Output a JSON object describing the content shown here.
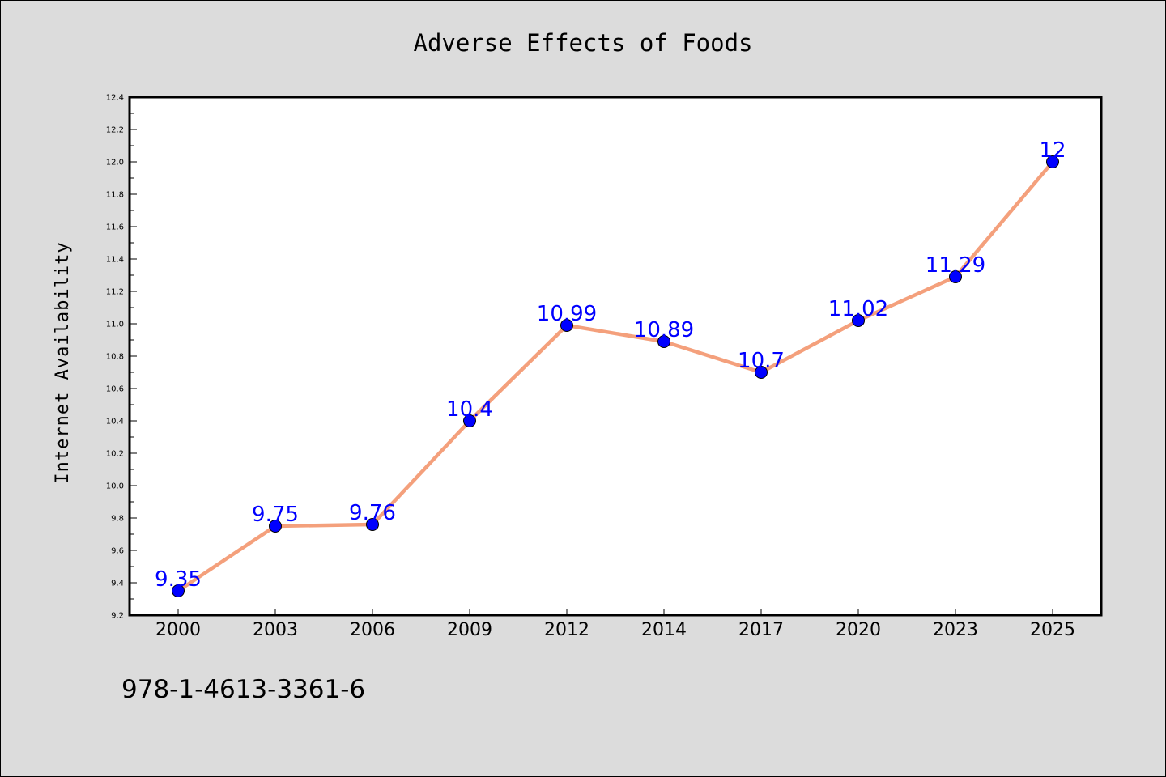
{
  "chart_data": {
    "type": "line",
    "title": "Adverse Effects of Foods",
    "xlabel": "",
    "ylabel": "Internet Availability",
    "categories": [
      "2000",
      "2003",
      "2006",
      "2009",
      "2012",
      "2014",
      "2017",
      "2020",
      "2023",
      "2025"
    ],
    "series": [
      {
        "values": [
          9.35,
          9.75,
          9.76,
          10.4,
          10.99,
          10.89,
          10.7,
          11.02,
          11.29,
          12
        ],
        "data_labels": [
          "9.35",
          "9.75",
          "9.76",
          "10.4",
          "10.99",
          "10.89",
          "10.7",
          "11.02",
          "11.29",
          "12"
        ],
        "line_color": "#f4a07c",
        "marker_color": "#0000ff"
      }
    ],
    "ylim": [
      9.2,
      12.4
    ],
    "yticks": [
      "9.2",
      "9.4",
      "9.6",
      "9.8",
      "10.0",
      "10.2",
      "10.4",
      "10.6",
      "10.8",
      "11.0",
      "11.2",
      "11.4",
      "11.6",
      "11.8",
      "12.0",
      "12.2",
      "12.4"
    ],
    "grid": false,
    "legend": "none",
    "background_color": "#dcdcdc",
    "plot_background_color": "#ffffff"
  },
  "footnote": "978-1-4613-3361-6"
}
